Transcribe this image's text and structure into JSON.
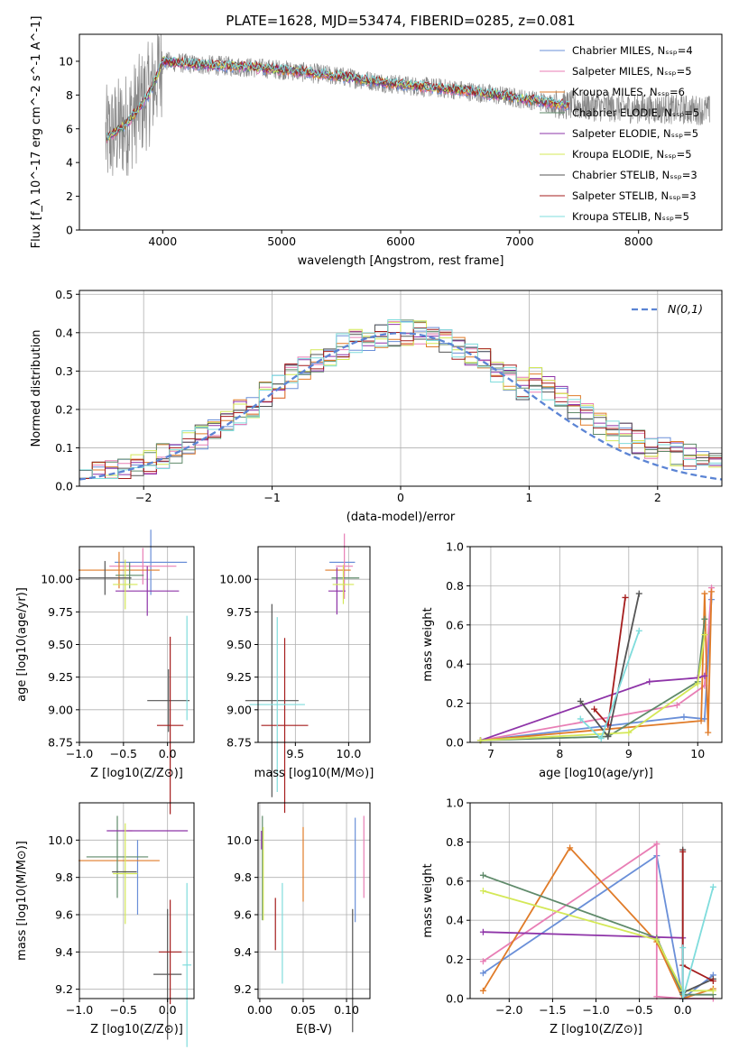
{
  "figure": {
    "title": "PLATE=1628, MJD=53474, FIBERID=0285, z=0.081"
  },
  "chart_data": [
    {
      "id": "spectrum",
      "type": "line",
      "xlabel": "wavelength [Angstrom, rest frame]",
      "ylabel": "Flux [f_λ 10^-17 erg cm^-2 s^-1 A^-1]",
      "xlim": [
        3300,
        8700
      ],
      "ylim": [
        0,
        11.6
      ],
      "xticks": [
        4000,
        5000,
        6000,
        7000,
        8000
      ],
      "yticks": [
        0,
        2,
        4,
        6,
        8,
        10
      ],
      "grid": false,
      "legend_position": "right",
      "series": [
        {
          "name": "Chabrier MILES, N_SSP=4",
          "color": "#6a8fd8"
        },
        {
          "name": "Salpeter MILES, N_SSP=5",
          "color": "#e87eb5"
        },
        {
          "name": "Kroupa MILES, N_SSP=6",
          "color": "#e07b28"
        },
        {
          "name": "Chabrier ELODIE, N_SSP=5",
          "color": "#5f8a6a"
        },
        {
          "name": "Salpeter ELODIE, N_SSP=5",
          "color": "#8e34a8"
        },
        {
          "name": "Kroupa ELODIE, N_SSP=5",
          "color": "#d4e857"
        },
        {
          "name": "Chabrier STELIB, N_SSP=3",
          "color": "#555555"
        },
        {
          "name": "Salpeter STELIB, N_SSP=3",
          "color": "#a51d1d"
        },
        {
          "name": "Kroupa STELIB, N_SSP=5",
          "color": "#7fdcdc"
        }
      ],
      "observed_color": "#888888",
      "continuum_x": [
        3500,
        3700,
        3900,
        4000,
        4300,
        4600,
        5000,
        5500,
        6000,
        6500,
        7000,
        7400,
        8000,
        8600
      ],
      "continuum_y": [
        5.3,
        6.3,
        8.2,
        10.0,
        9.8,
        9.7,
        9.5,
        9.1,
        8.6,
        8.3,
        7.8,
        7.4,
        7.2,
        7.1
      ]
    },
    {
      "id": "residuals",
      "type": "line",
      "xlabel": "(data-model)/error",
      "ylabel": "Normed distribution",
      "xlim": [
        -2.5,
        2.5
      ],
      "ylim": [
        0,
        0.51
      ],
      "xticks": [
        -2,
        -1,
        0,
        1,
        2
      ],
      "yticks": [
        0.0,
        0.1,
        0.2,
        0.3,
        0.4,
        0.5
      ],
      "grid": true,
      "legend_position": "top-right",
      "gaussian_label": "N(0,1)",
      "gaussian_color": "#5b84d4"
    },
    {
      "id": "age_vs_Z",
      "type": "scatter",
      "xlabel": "Z [log10(Z/Z⊙)]",
      "ylabel": "age  [log10(age/yr)]",
      "xlim": [
        -1.0,
        0.3
      ],
      "ylim": [
        8.75,
        10.25
      ],
      "xticks": [
        -1.0,
        -0.5,
        0.0
      ],
      "yticks": [
        8.75,
        9.0,
        9.25,
        9.5,
        9.75,
        10.0
      ],
      "grid": true,
      "points": [
        {
          "series": 0,
          "x": -0.19,
          "y": 10.13,
          "xerr": 0.41,
          "yerr": 0.25
        },
        {
          "series": 1,
          "x": -0.28,
          "y": 10.1,
          "xerr": 0.38,
          "yerr": 0.14
        },
        {
          "series": 2,
          "x": -0.55,
          "y": 10.07,
          "xerr": 0.46,
          "yerr": 0.14
        },
        {
          "series": 3,
          "x": -0.43,
          "y": 10.03,
          "xerr": 0.16,
          "yerr": 0.1
        },
        {
          "series": 4,
          "x": -0.23,
          "y": 9.91,
          "xerr": 0.36,
          "yerr": 0.19
        },
        {
          "series": 5,
          "x": -0.48,
          "y": 9.96,
          "xerr": 0.14,
          "yerr": 0.19
        },
        {
          "series": 6,
          "x": -0.71,
          "y": 10.01,
          "xerr": 0.3,
          "yerr": 0.13
        },
        {
          "series": 6,
          "x": 0.01,
          "y": 9.07,
          "xerr": 0.24,
          "yerr": 0.24
        },
        {
          "series": 7,
          "x": 0.03,
          "y": 8.88,
          "xerr": 0.15,
          "yerr": 0.68
        },
        {
          "series": 8,
          "x": 0.22,
          "y": 9.32,
          "xerr": 0.0,
          "yerr": 0.4
        }
      ]
    },
    {
      "id": "age_vs_mass",
      "type": "scatter",
      "xlabel": "mass [log10(M/M⊙)]",
      "ylabel": "",
      "xlim": [
        9.15,
        10.2
      ],
      "ylim": [
        8.75,
        10.25
      ],
      "xticks": [
        9.5,
        10.0
      ],
      "yticks": [
        8.75,
        9.0,
        9.25,
        9.5,
        9.75,
        10.0
      ],
      "grid": true,
      "points": [
        {
          "series": 0,
          "x": 9.94,
          "y": 10.13,
          "xerr": 0.12,
          "yerr": 0.0
        },
        {
          "series": 1,
          "x": 9.96,
          "y": 10.1,
          "xerr": 0.08,
          "yerr": 0.25
        },
        {
          "series": 2,
          "x": 9.9,
          "y": 10.07,
          "xerr": 0.12,
          "yerr": 0.0
        },
        {
          "series": 3,
          "x": 9.97,
          "y": 10.01,
          "xerr": 0.13,
          "yerr": 0.0
        },
        {
          "series": 4,
          "x": 9.89,
          "y": 9.91,
          "xerr": 0.08,
          "yerr": 0.18
        },
        {
          "series": 5,
          "x": 9.95,
          "y": 9.96,
          "xerr": 0.1,
          "yerr": 0.15
        },
        {
          "series": 6,
          "x": 9.28,
          "y": 9.07,
          "xerr": 0.25,
          "yerr": 0.74
        },
        {
          "series": 7,
          "x": 9.4,
          "y": 8.88,
          "xerr": 0.22,
          "yerr": 0.67
        },
        {
          "series": 8,
          "x": 9.33,
          "y": 9.04,
          "xerr": 0.26,
          "yerr": 0.67
        }
      ]
    },
    {
      "id": "weight_vs_age",
      "type": "line",
      "xlabel": "age  [log10(age/yr)]",
      "ylabel": "mass weight",
      "xlim": [
        6.7,
        10.35
      ],
      "ylim": [
        0.0,
        1.0
      ],
      "xticks": [
        7,
        8,
        9,
        10
      ],
      "yticks": [
        0.0,
        0.2,
        0.4,
        0.6,
        0.8,
        1.0
      ],
      "grid": true,
      "series": [
        {
          "color": "#6a8fd8",
          "x": [
            6.85,
            9.8,
            10.1,
            10.2
          ],
          "y": [
            0.01,
            0.13,
            0.12,
            0.73
          ]
        },
        {
          "color": "#e87eb5",
          "x": [
            6.85,
            9.7,
            10.1,
            10.2
          ],
          "y": [
            0.01,
            0.19,
            0.29,
            0.79
          ]
        },
        {
          "color": "#e07b28",
          "x": [
            6.85,
            10.05,
            10.1,
            10.15,
            10.2
          ],
          "y": [
            0.01,
            0.11,
            0.76,
            0.05,
            0.77
          ]
        },
        {
          "color": "#5f8a6a",
          "x": [
            6.85,
            8.7,
            10.0,
            10.1
          ],
          "y": [
            0.01,
            0.03,
            0.31,
            0.63
          ]
        },
        {
          "color": "#8e34a8",
          "x": [
            6.85,
            9.3,
            10.0,
            10.1
          ],
          "y": [
            0.01,
            0.31,
            0.33,
            0.34
          ]
        },
        {
          "color": "#d4e857",
          "x": [
            6.85,
            9.0,
            10.0,
            10.1
          ],
          "y": [
            0.01,
            0.05,
            0.3,
            0.55
          ]
        },
        {
          "color": "#555555",
          "x": [
            8.3,
            8.7,
            9.15
          ],
          "y": [
            0.21,
            0.03,
            0.76
          ]
        },
        {
          "color": "#a51d1d",
          "x": [
            8.5,
            8.7,
            8.95
          ],
          "y": [
            0.17,
            0.09,
            0.74
          ]
        },
        {
          "color": "#7fdcdc",
          "x": [
            8.3,
            8.6,
            9.15
          ],
          "y": [
            0.12,
            0.02,
            0.57
          ]
        }
      ]
    },
    {
      "id": "mass_vs_Z",
      "type": "scatter",
      "xlabel": "Z [log10(Z/Z⊙)]",
      "ylabel": "mass [log10(M/M⊙)]",
      "xlim": [
        -1.0,
        0.3
      ],
      "ylim": [
        9.15,
        10.2
      ],
      "xticks": [
        -1.0,
        -0.5,
        0.0
      ],
      "yticks": [
        9.2,
        9.4,
        9.6,
        9.8,
        10.0
      ],
      "grid": true,
      "points": [
        {
          "series": 0,
          "x": -0.34,
          "y": 9.8,
          "xerr": 0.0,
          "yerr": 0.2
        },
        {
          "series": 1,
          "x": -0.43,
          "y": 10.05,
          "xerr": 0.0,
          "yerr": 0.0
        },
        {
          "series": 2,
          "x": -0.55,
          "y": 9.89,
          "xerr": 0.46,
          "yerr": 0.0
        },
        {
          "series": 3,
          "x": -0.57,
          "y": 9.91,
          "xerr": 0.35,
          "yerr": 0.22
        },
        {
          "series": 4,
          "x": -0.23,
          "y": 10.05,
          "xerr": 0.46,
          "yerr": 0.0
        },
        {
          "series": 5,
          "x": -0.48,
          "y": 9.82,
          "xerr": 0.14,
          "yerr": 0.27
        },
        {
          "series": 6,
          "x": -0.49,
          "y": 9.83,
          "xerr": 0.14,
          "yerr": 0.0
        },
        {
          "series": 6,
          "x": 0.0,
          "y": 9.28,
          "xerr": 0.16,
          "yerr": 0.35
        },
        {
          "series": 7,
          "x": 0.03,
          "y": 9.4,
          "xerr": 0.13,
          "yerr": 0.28
        },
        {
          "series": 8,
          "x": 0.22,
          "y": 9.33,
          "xerr": 0.05,
          "yerr": 0.44
        }
      ]
    },
    {
      "id": "mass_vs_EBV",
      "type": "scatter",
      "xlabel": "E(B-V)",
      "ylabel": "",
      "xlim": [
        -0.002,
        0.127
      ],
      "ylim": [
        9.15,
        10.2
      ],
      "xticks": [
        0.0,
        0.05,
        0.1
      ],
      "yticks": [
        9.2,
        9.4,
        9.6,
        9.8,
        10.0
      ],
      "grid": true,
      "points": [
        {
          "series": 0,
          "x": 0.11,
          "y": 9.84,
          "yerr": 0.28
        },
        {
          "series": 1,
          "x": 0.12,
          "y": 9.91,
          "yerr": 0.22
        },
        {
          "series": 2,
          "x": 0.05,
          "y": 9.87,
          "yerr": 0.2
        },
        {
          "series": 3,
          "x": 0.003,
          "y": 9.85,
          "yerr": 0.28
        },
        {
          "series": 4,
          "x": 0.002,
          "y": 10.0,
          "yerr": 0.05
        },
        {
          "series": 5,
          "x": 0.004,
          "y": 9.82,
          "yerr": 0.25
        },
        {
          "series": 6,
          "x": 0.107,
          "y": 9.3,
          "yerr": 0.33
        },
        {
          "series": 7,
          "x": 0.018,
          "y": 9.55,
          "yerr": 0.14
        },
        {
          "series": 8,
          "x": 0.026,
          "y": 9.5,
          "yerr": 0.27
        }
      ]
    },
    {
      "id": "weight_vs_Z",
      "type": "line",
      "xlabel": "Z [log10(Z/Z⊙)]",
      "ylabel": "mass weight",
      "xlim": [
        -2.45,
        0.45
      ],
      "ylim": [
        0.0,
        1.0
      ],
      "xticks": [
        -2.0,
        -1.5,
        -1.0,
        -0.5,
        0.0
      ],
      "yticks": [
        0.0,
        0.2,
        0.4,
        0.6,
        0.8,
        1.0
      ],
      "grid": true,
      "series": [
        {
          "color": "#6a8fd8",
          "x": [
            -2.3,
            -0.3,
            0.0,
            0.35
          ],
          "y": [
            0.13,
            0.73,
            0.0,
            0.12
          ]
        },
        {
          "color": "#e87eb5",
          "x": [
            -2.3,
            -0.3,
            -0.3,
            0.0,
            0.35
          ],
          "y": [
            0.19,
            0.79,
            0.01,
            0.0,
            0.0
          ]
        },
        {
          "color": "#e07b28",
          "x": [
            -2.3,
            -1.3,
            -0.3,
            0.0,
            0.35
          ],
          "y": [
            0.04,
            0.77,
            0.29,
            0.0,
            0.05
          ]
        },
        {
          "color": "#5f8a6a",
          "x": [
            -2.3,
            -0.3,
            0.0,
            0.35
          ],
          "y": [
            0.63,
            0.31,
            0.02,
            0.02
          ]
        },
        {
          "color": "#8e34a8",
          "x": [
            -2.3,
            0.0,
            0.0
          ],
          "y": [
            0.34,
            0.31,
            0.0
          ]
        },
        {
          "color": "#d4e857",
          "x": [
            -2.3,
            -0.3,
            0.0,
            0.35
          ],
          "y": [
            0.55,
            0.3,
            0.04,
            0.04
          ]
        },
        {
          "color": "#555555",
          "x": [
            0.0,
            0.0,
            0.35
          ],
          "y": [
            0.76,
            0.03,
            0.1
          ]
        },
        {
          "color": "#a51d1d",
          "x": [
            0.0,
            0.0,
            0.35
          ],
          "y": [
            0.75,
            0.17,
            0.09
          ]
        },
        {
          "color": "#7fdcdc",
          "x": [
            0.0,
            0.0,
            0.35
          ],
          "y": [
            0.26,
            0.0,
            0.57
          ]
        }
      ]
    }
  ]
}
